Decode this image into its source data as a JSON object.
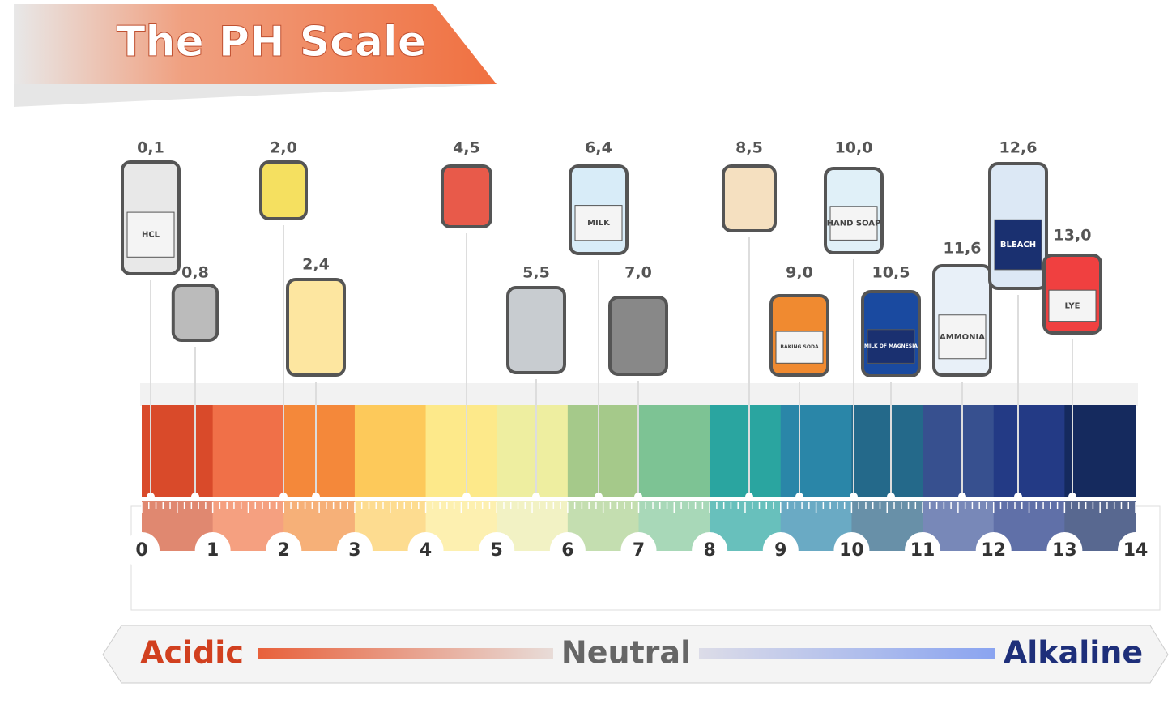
{
  "title": "The PH Scale",
  "scale": {
    "ticks": [
      "0",
      "1",
      "2",
      "3",
      "4",
      "5",
      "6",
      "7",
      "8",
      "9",
      "10",
      "11",
      "12",
      "13",
      "14"
    ]
  },
  "items": [
    {
      "value": "0,1",
      "label": "HCL"
    },
    {
      "value": "0,8"
    },
    {
      "value": "2,0"
    },
    {
      "value": "2,4"
    },
    {
      "value": "4,5"
    },
    {
      "value": "5,5"
    },
    {
      "value": "6,4",
      "label": "MILK"
    },
    {
      "value": "7,0"
    },
    {
      "value": "8,5"
    },
    {
      "value": "9,0",
      "label": "BAKING SODA"
    },
    {
      "value": "10,0",
      "label": "HAND SOAP"
    },
    {
      "value": "10,5",
      "label": "MILK OF MAGNESIA"
    },
    {
      "value": "11,6",
      "label": "AMMONIA"
    },
    {
      "value": "12,6",
      "label": "BLEACH"
    },
    {
      "value": "13,0",
      "label": "LYE"
    }
  ],
  "legend": {
    "acidic": "Acidic",
    "neutral": "Neutral",
    "alkaline": "Alkaline"
  }
}
